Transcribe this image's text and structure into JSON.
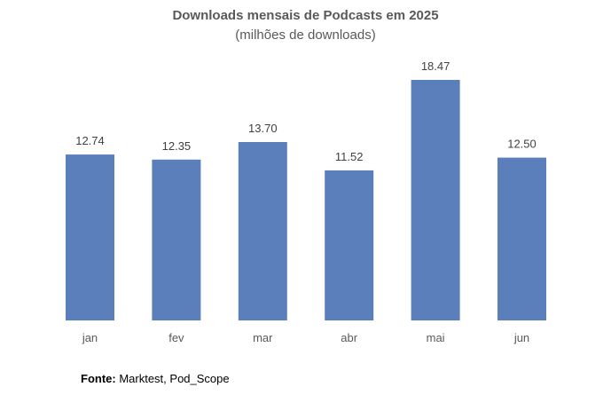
{
  "chart_data": {
    "type": "bar",
    "title": "Downloads mensais de Podcasts em 2025",
    "subtitle": "(milhões de downloads)",
    "categories": [
      "jan",
      "fev",
      "mar",
      "abr",
      "mai",
      "jun"
    ],
    "values": [
      12.74,
      12.35,
      13.7,
      11.52,
      18.47,
      12.5
    ],
    "data_labels": [
      "12.74",
      "12.35",
      "13.70",
      "11.52",
      "18.47",
      "12.50"
    ],
    "xlabel": "",
    "ylabel": "",
    "ylim": [
      0,
      18.47
    ],
    "grid": false,
    "legend": "none",
    "bar_color": "#5a7fba"
  },
  "source": {
    "label": "Fonte:",
    "text": " Marktest, Pod_Scope"
  }
}
